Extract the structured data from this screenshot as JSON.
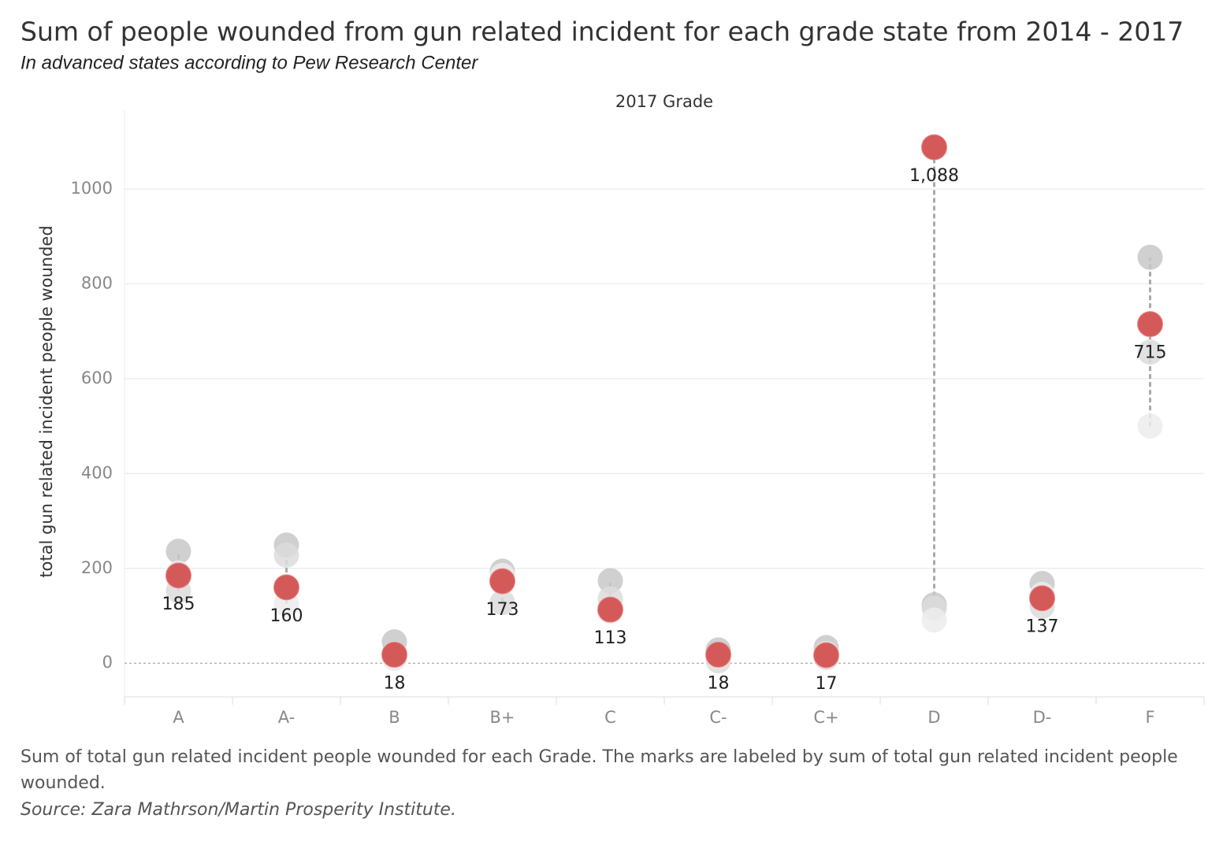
{
  "chart_data": {
    "type": "dot-range",
    "title": "Sum of people wounded from gun related incident for each grade state from 2014 - 2017",
    "subtitle": "In advanced states according to Pew Research Center",
    "x_label": "2017 Grade",
    "y_label": "total gun related incident people wounded",
    "caption": "Sum of total gun related incident people wounded for each Grade.  The marks are labeled by sum of total gun related incident people wounded.",
    "source": "Source: Zara Mathrson/Martin Prosperity Institute.",
    "categories": [
      "A",
      "A-",
      "B",
      "B+",
      "C",
      "C-",
      "C+",
      "D",
      "D-",
      "F"
    ],
    "series": [
      {
        "color": "#c8c8c8",
        "values": [
          236,
          249,
          45,
          194,
          174,
          28,
          33,
          123,
          168,
          856
        ]
      },
      {
        "color": "#dcdcdc",
        "values": [
          153,
          228,
          20,
          128,
          136,
          5,
          12,
          116,
          120,
          656
        ]
      },
      {
        "color": "#ececec",
        "values": [
          190,
          125,
          10,
          185,
          110,
          15,
          20,
          91,
          145,
          500
        ]
      },
      {
        "color": "#d45a5a",
        "values": [
          185,
          160,
          18,
          173,
          113,
          18,
          17,
          1088,
          137,
          715
        ],
        "value_labels": [
          "185",
          "160",
          "18",
          "173",
          "113",
          "18",
          "17",
          "1,088",
          "137",
          "715"
        ]
      }
    ],
    "ylim": [
      -71,
      1166
    ],
    "yticks": [
      0,
      200,
      400,
      600,
      800,
      1000
    ],
    "grid": true
  }
}
